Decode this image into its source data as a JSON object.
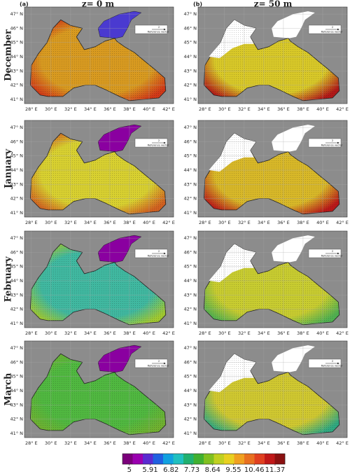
{
  "panels": {
    "columns": [
      {
        "label": "(a)",
        "title": "z= 0 m"
      },
      {
        "label": "(b)",
        "title": "z= 50 m"
      }
    ],
    "rows": [
      "December",
      "January",
      "February",
      "March"
    ]
  },
  "map": {
    "xlim": [
      27.3,
      42.5
    ],
    "ylim": [
      40.7,
      47.5
    ],
    "xticks": [
      {
        "value": 28,
        "label": "28° E"
      },
      {
        "value": 30,
        "label": "30° E"
      },
      {
        "value": 32,
        "label": "32° E"
      },
      {
        "value": 34,
        "label": "34° E"
      },
      {
        "value": 36,
        "label": "36° E"
      },
      {
        "value": 38,
        "label": "38° E"
      },
      {
        "value": 40,
        "label": "40° E"
      },
      {
        "value": 42,
        "label": "42° E"
      }
    ],
    "yticks": [
      {
        "value": 41,
        "label": "41° N"
      },
      {
        "value": 42,
        "label": "42° N"
      },
      {
        "value": 43,
        "label": "43° N"
      },
      {
        "value": 44,
        "label": "44° N"
      },
      {
        "value": 45,
        "label": "45° N"
      },
      {
        "value": 46,
        "label": "46° N"
      },
      {
        "value": 47,
        "label": "47° N"
      }
    ],
    "grid": true
  },
  "reference_vector": {
    "magnitude": 2,
    "label": "Reference vector"
  },
  "colorbar": {
    "range": [
      4.7,
      11.8
    ],
    "ticks": [
      5,
      5.91,
      6.82,
      7.73,
      8.64,
      9.55,
      10.46,
      11.37
    ],
    "colors": [
      "#7a007a",
      "#9a00b0",
      "#5a2ad0",
      "#2060e0",
      "#10a0e0",
      "#20c0c0",
      "#20b070",
      "#40b030",
      "#80c020",
      "#c0d020",
      "#e8d020",
      "#f0a020",
      "#e87020",
      "#e04020",
      "#c01818",
      "#8a1010"
    ]
  }
}
